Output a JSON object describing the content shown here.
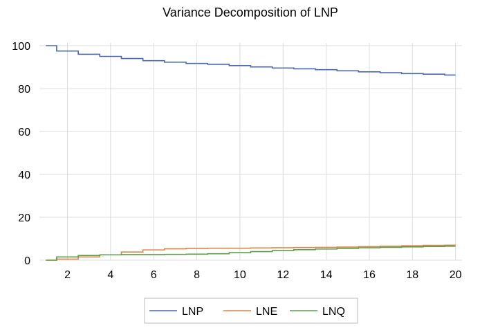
{
  "chart_data": {
    "type": "line",
    "title": "Variance Decomposition of LNP",
    "xlabel": "",
    "ylabel": "",
    "x": [
      1,
      2,
      3,
      4,
      5,
      6,
      7,
      8,
      9,
      10,
      11,
      12,
      13,
      14,
      15,
      16,
      17,
      18,
      19,
      20
    ],
    "xlim": [
      0.7,
      20.3
    ],
    "ylim": [
      0,
      100
    ],
    "xticks": [
      2,
      4,
      6,
      8,
      10,
      12,
      14,
      16,
      18,
      20
    ],
    "yticks": [
      0,
      20,
      40,
      60,
      80,
      100
    ],
    "grid": true,
    "legend_position": "bottom-center",
    "series": [
      {
        "name": "LNP",
        "color": "#4A68AE",
        "values": [
          100,
          97.5,
          96,
          95,
          94,
          93,
          92.3,
          91.7,
          91.3,
          90.7,
          90.1,
          89.6,
          89.2,
          88.8,
          88.3,
          87.8,
          87.4,
          87,
          86.7,
          86.3
        ]
      },
      {
        "name": "LNE",
        "color": "#D9864A",
        "values": [
          0,
          0.5,
          1.5,
          2.5,
          3.8,
          4.8,
          5.3,
          5.5,
          5.6,
          5.6,
          5.7,
          5.8,
          5.9,
          6.0,
          6.1,
          6.3,
          6.5,
          6.7,
          6.9,
          7.0
        ]
      },
      {
        "name": "LNQ",
        "color": "#5E9E4A",
        "values": [
          0,
          1.5,
          2.2,
          2.5,
          2.6,
          2.6,
          2.7,
          2.8,
          3.0,
          3.5,
          4.0,
          4.5,
          4.9,
          5.2,
          5.5,
          5.8,
          6.0,
          6.2,
          6.4,
          6.5
        ]
      }
    ]
  }
}
